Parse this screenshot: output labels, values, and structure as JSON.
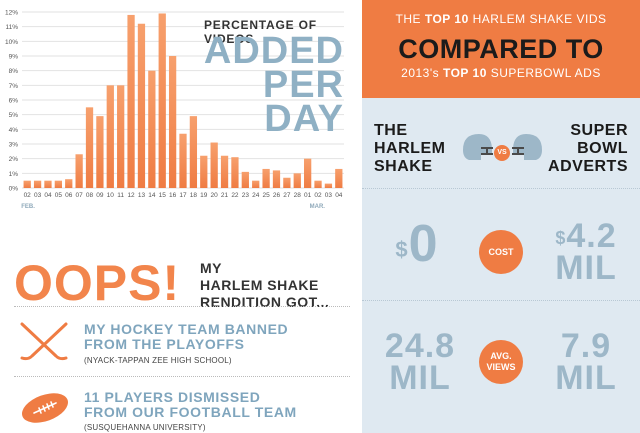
{
  "chart_data": {
    "type": "bar",
    "title": "PERCENTAGE OF VIDEOS",
    "title_big": [
      "ADDED",
      "PER",
      "DAY"
    ],
    "categories": [
      "02",
      "03",
      "04",
      "05",
      "06",
      "07",
      "08",
      "09",
      "10",
      "11",
      "12",
      "13",
      "14",
      "15",
      "16",
      "17",
      "18",
      "19",
      "20",
      "21",
      "22",
      "23",
      "24",
      "25",
      "26",
      "27",
      "28",
      "01",
      "02",
      "03",
      "04"
    ],
    "values": [
      0.5,
      0.5,
      0.5,
      0.5,
      0.6,
      2.3,
      5.5,
      4.9,
      7.0,
      7.0,
      11.8,
      11.2,
      8.0,
      11.9,
      9.0,
      3.7,
      4.9,
      2.2,
      3.1,
      2.2,
      2.1,
      1.1,
      0.5,
      1.3,
      1.2,
      0.7,
      1.0,
      2.0,
      0.5,
      0.3,
      1.3
    ],
    "yticks": [
      "0%",
      "1%",
      "2%",
      "3%",
      "4%",
      "5%",
      "6%",
      "7%",
      "8%",
      "9%",
      "10%",
      "11%",
      "12%"
    ],
    "ylim": [
      0,
      12
    ],
    "month_labels": [
      "FEB.",
      "MAR."
    ],
    "colors": {
      "bar_top": "#f7a06d",
      "bar_bottom": "#ef7c43",
      "grid": "#e2e2e2",
      "axis_text": "#555555"
    }
  },
  "oops": {
    "title": "OOPS!",
    "text": [
      "MY",
      "HARLEM SHAKE",
      "RENDITION GOT..."
    ],
    "items": [
      {
        "title": [
          "MY HOCKEY TEAM BANNED",
          "FROM THE PLAYOFFS"
        ],
        "sub": "(NYACK-TAPPAN ZEE HIGH SCHOOL)",
        "icon": "hockey-sticks-icon"
      },
      {
        "title": [
          "11 PLAYERS DISMISSED",
          "FROM OUR FOOTBALL TEAM"
        ],
        "sub": "(SUSQUEHANNA UNIVERSITY)",
        "icon": "football-icon"
      }
    ]
  },
  "comparison": {
    "header": {
      "line1_pre": "THE ",
      "line1_bold": "TOP 10",
      "line1_post": " HARLEM SHAKE VIDS",
      "line2": "COMPARED TO",
      "line3_pre": "2013's ",
      "line3_bold": "TOP 10",
      "line3_post": " SUPERBOWL ADS"
    },
    "left_name": [
      "THE",
      "HARLEM",
      "SHAKE"
    ],
    "right_name": [
      "SUPER",
      "BOWL",
      "ADVERTS"
    ],
    "vs": "VS",
    "rows": [
      {
        "label": "COST",
        "left": {
          "symbol": "$",
          "num": "0",
          "unit": ""
        },
        "right": {
          "symbol": "$",
          "num": "4.2",
          "unit": "MIL"
        }
      },
      {
        "label": [
          "AVG.",
          "VIEWS"
        ],
        "left": {
          "symbol": "",
          "num": "24.8",
          "unit": "MIL"
        },
        "right": {
          "symbol": "",
          "num": "7.9",
          "unit": "MIL"
        }
      }
    ],
    "colors": {
      "header_bg": "#ef7c43",
      "panel_bg": "#dfe9f1",
      "num": "#9db7c8",
      "helmet": "#9db7c8"
    }
  }
}
